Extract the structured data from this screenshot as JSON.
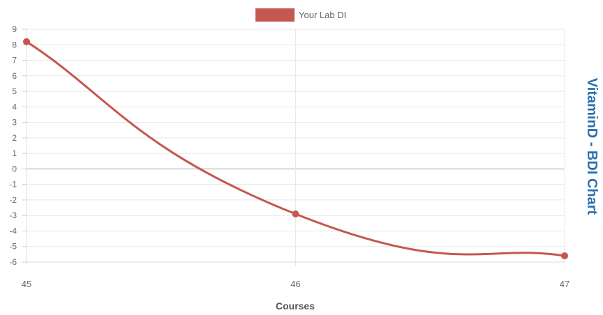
{
  "chart_data": {
    "type": "line",
    "title": "VitaminD - BDI Chart",
    "xlabel": "Courses",
    "ylabel": "",
    "categories": [
      "45",
      "46",
      "47"
    ],
    "ylim": [
      -6,
      9
    ],
    "yticks": [
      "9",
      "8",
      "7",
      "6",
      "5",
      "4",
      "3",
      "2",
      "1",
      "0",
      "-1",
      "-2",
      "-3",
      "-4",
      "-5",
      "-6"
    ],
    "grid": true,
    "legend_position": "top-center",
    "series": [
      {
        "name": "Your Lab DI",
        "color": "#c4574f",
        "values": [
          8.2,
          -2.9,
          -5.6
        ]
      }
    ]
  }
}
